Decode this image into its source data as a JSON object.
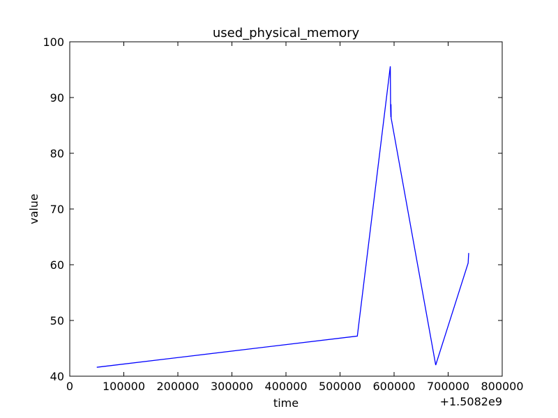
{
  "chart_data": {
    "type": "line",
    "title": "used_physical_memory",
    "xlabel": "time",
    "ylabel": "value",
    "x_offset_label": "+1.5082e9",
    "xlim": [
      0,
      800000
    ],
    "ylim": [
      40,
      100
    ],
    "xticks": [
      0,
      100000,
      200000,
      300000,
      400000,
      500000,
      600000,
      700000,
      800000
    ],
    "yticks": [
      40,
      50,
      60,
      70,
      80,
      90,
      100
    ],
    "grid": false,
    "line_color": "#0000ff",
    "series": [
      {
        "x": [
          50000,
          532000,
          593000,
          593500,
          594000,
          594300,
          594600,
          677000,
          737000,
          738000
        ],
        "y": [
          41.6,
          47.2,
          95.6,
          88.5,
          86.5,
          88.8,
          86.3,
          42.0,
          60.3,
          62.1
        ]
      }
    ]
  }
}
